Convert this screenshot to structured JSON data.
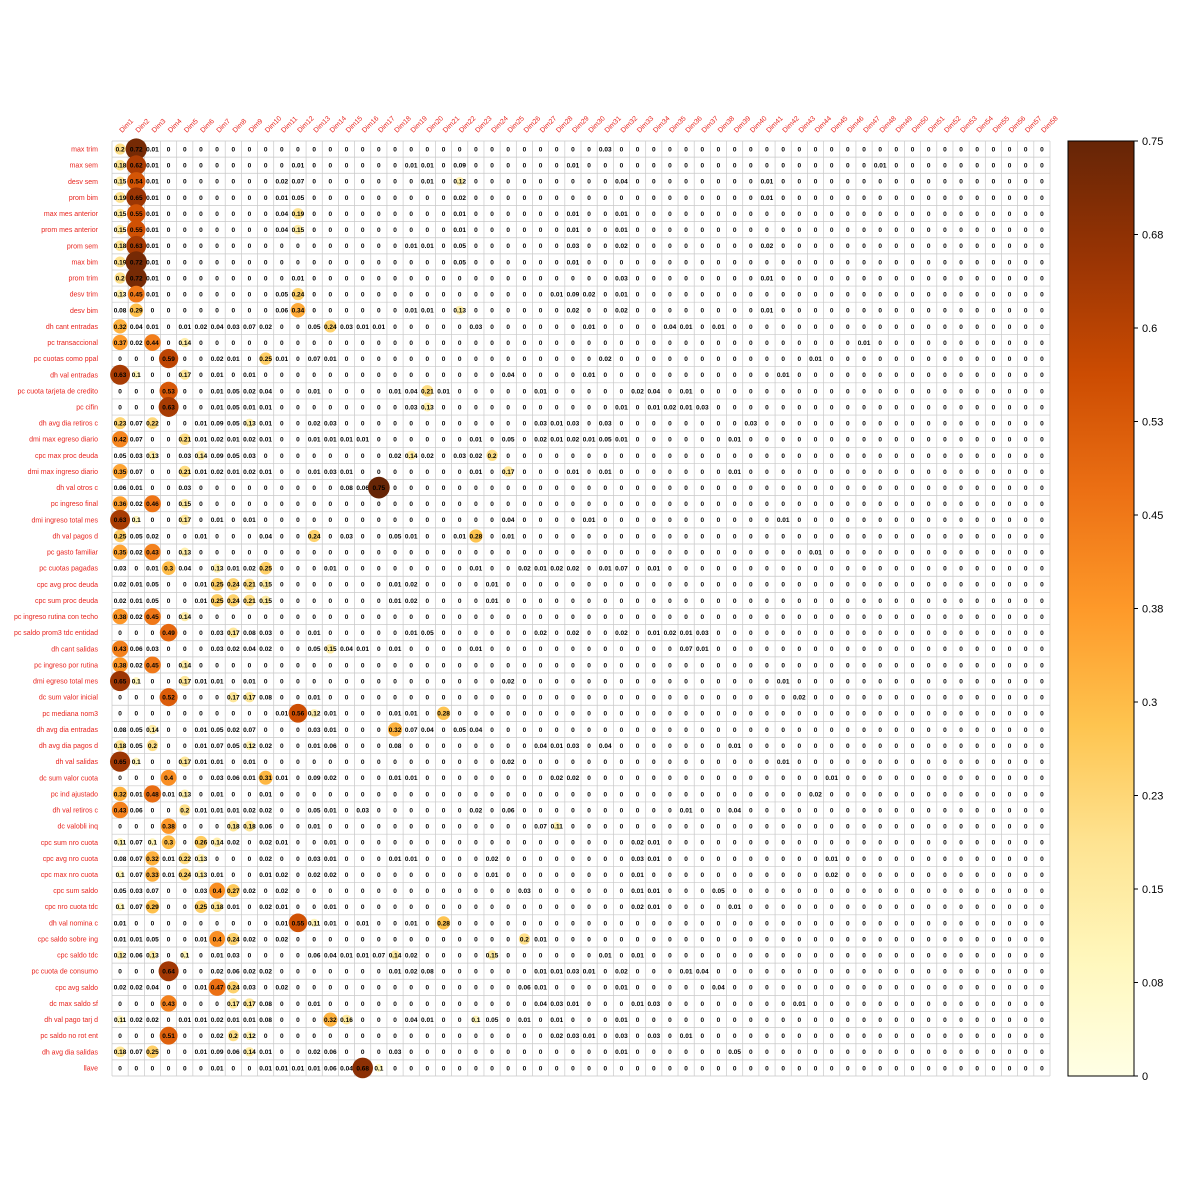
{
  "chart_data": {
    "type": "heatmap",
    "title": "",
    "columns": [
      "Dim1",
      "Dim2",
      "Dim3",
      "Dim4",
      "Dim5",
      "Dim6",
      "Dim7",
      "Dim8",
      "Dim9",
      "Dim10",
      "Dim11",
      "Dim12",
      "Dim13",
      "Dim14",
      "Dim15",
      "Dim16",
      "Dim17",
      "Dim18",
      "Dim19",
      "Dim20",
      "Dim21",
      "Dim22",
      "Dim23",
      "Dim24",
      "Dim25",
      "Dim26",
      "Dim27",
      "Dim28",
      "Dim29",
      "Dim30",
      "Dim31",
      "Dim32",
      "Dim33",
      "Dim34",
      "Dim35",
      "Dim36",
      "Dim37",
      "Dim38",
      "Dim39",
      "Dim40",
      "Dim41",
      "Dim42",
      "Dim43",
      "Dim44",
      "Dim45",
      "Dim46",
      "Dim47",
      "Dim48",
      "Dim49",
      "Dim50",
      "Dim51",
      "Dim52",
      "Dim53",
      "Dim54",
      "Dim55",
      "Dim56",
      "Dim57",
      "Dim58"
    ],
    "rows": [
      {
        "label": "max_trim",
        "values": {
          "0": 0.2,
          "1": 0.72,
          "2": 0.01,
          "30": 0.03
        }
      },
      {
        "label": "max_sem",
        "values": {
          "0": 0.18,
          "1": 0.62,
          "2": 0.01,
          "11": 0.01,
          "18": 0.01,
          "19": 0.01,
          "21": 0.09,
          "28": 0.01,
          "47": 0.01
        }
      },
      {
        "label": "desv_sem",
        "values": {
          "0": 0.15,
          "1": 0.54,
          "2": 0.01,
          "10": 0.02,
          "11": 0.07,
          "19": 0.01,
          "21": 0.12,
          "31": 0.04,
          "40": 0.01
        }
      },
      {
        "label": "prom_bim",
        "values": {
          "0": 0.19,
          "1": 0.65,
          "2": 0.01,
          "10": 0.01,
          "11": 0.05,
          "21": 0.02,
          "40": 0.01
        }
      },
      {
        "label": "max_mes_anterior",
        "values": {
          "0": 0.15,
          "1": 0.55,
          "2": 0.01,
          "10": 0.04,
          "11": 0.19,
          "21": 0.01,
          "28": 0.01,
          "31": 0.01
        }
      },
      {
        "label": "prom_mes_anterior",
        "values": {
          "0": 0.15,
          "1": 0.55,
          "2": 0.01,
          "10": 0.04,
          "11": 0.15,
          "21": 0.01,
          "28": 0.01,
          "31": 0.01
        }
      },
      {
        "label": "prom_sem",
        "values": {
          "0": 0.18,
          "1": 0.63,
          "2": 0.01,
          "18": 0.01,
          "19": 0.01,
          "21": 0.05,
          "28": 0.03,
          "31": 0.02,
          "40": 0.02
        }
      },
      {
        "label": "max_bim",
        "values": {
          "0": 0.19,
          "1": 0.72,
          "2": 0.01,
          "21": 0.05,
          "28": 0.01
        }
      },
      {
        "label": "prom_trim",
        "values": {
          "0": 0.2,
          "1": 0.72,
          "2": 0.01,
          "11": 0.01,
          "31": 0.03,
          "40": 0.01
        }
      },
      {
        "label": "desv_trim",
        "values": {
          "0": 0.13,
          "1": 0.45,
          "2": 0.01,
          "10": 0.05,
          "11": 0.24,
          "27": 0.01,
          "28": 0.09,
          "29": 0.02,
          "31": 0.01
        }
      },
      {
        "label": "desv_bim",
        "values": {
          "0": 0.08,
          "1": 0.29,
          "10": 0.06,
          "11": 0.34,
          "18": 0.01,
          "19": 0.01,
          "21": 0.13,
          "28": 0.02,
          "31": 0.02,
          "40": 0.01
        }
      },
      {
        "label": "dh_cant_entradas",
        "values": {
          "0": 0.32,
          "1": 0.04,
          "2": 0.01,
          "4": 0.01,
          "5": 0.02,
          "6": 0.04,
          "7": 0.03,
          "8": 0.07,
          "9": 0.02,
          "12": 0.05,
          "13": 0.24,
          "14": 0.03,
          "15": 0.01,
          "16": 0.01,
          "22": 0.03,
          "29": 0.01,
          "34": 0.04,
          "35": 0.01,
          "37": 0.01
        }
      },
      {
        "label": "pc_transaccional",
        "values": {
          "0": 0.37,
          "1": 0.02,
          "2": 0.44,
          "4": 0.14,
          "46": 0.01
        }
      },
      {
        "label": "pc_cuotas_como_ppal",
        "values": {
          "3": 0.59,
          "6": 0.02,
          "7": 0.01,
          "9": 0.25,
          "10": 0.01,
          "12": 0.07,
          "13": 0.01,
          "30": 0.02,
          "43": 0.01
        }
      },
      {
        "label": "dh_val_entradas",
        "values": {
          "0": 0.63,
          "1": 0.1,
          "4": 0.17,
          "6": 0.01,
          "8": 0.01,
          "24": 0.04,
          "29": 0.01,
          "41": 0.01
        }
      },
      {
        "label": "pc_cuota_tarjeta_de_credito",
        "values": {
          "3": 0.53,
          "6": 0.01,
          "7": 0.05,
          "8": 0.02,
          "9": 0.04,
          "12": 0.01,
          "17": 0.01,
          "18": 0.04,
          "19": 0.21,
          "20": 0.01,
          "26": 0.01,
          "32": 0.02,
          "33": 0.04,
          "35": 0.01
        }
      },
      {
        "label": "pc_cifin",
        "values": {
          "3": 0.63,
          "6": 0.01,
          "7": 0.05,
          "8": 0.01,
          "9": 0.01,
          "18": 0.03,
          "19": 0.13,
          "31": 0.01,
          "33": 0.01,
          "34": 0.02,
          "35": 0.01,
          "36": 0.03
        }
      },
      {
        "label": "dh_avg_dia_retiros_c",
        "values": {
          "0": 0.23,
          "1": 0.07,
          "2": 0.22,
          "5": 0.01,
          "6": 0.09,
          "7": 0.05,
          "8": 0.13,
          "9": 0.01,
          "12": 0.02,
          "13": 0.03,
          "26": 0.03,
          "27": 0.01,
          "28": 0.03,
          "30": 0.03,
          "39": 0.03
        }
      },
      {
        "label": "dmi_max_egreso_diario",
        "values": {
          "0": 0.42,
          "1": 0.07,
          "4": 0.21,
          "5": 0.01,
          "6": 0.02,
          "7": 0.01,
          "8": 0.02,
          "9": 0.01,
          "12": 0.01,
          "13": 0.01,
          "14": 0.01,
          "15": 0.01,
          "22": 0.01,
          "24": 0.05,
          "26": 0.02,
          "27": 0.01,
          "28": 0.02,
          "29": 0.01,
          "30": 0.05,
          "31": 0.01,
          "38": 0.01
        }
      },
      {
        "label": "cpc_max_proc_deuda",
        "values": {
          "0": 0.05,
          "1": 0.03,
          "2": 0.13,
          "4": 0.03,
          "5": 0.14,
          "6": 0.09,
          "7": 0.05,
          "8": 0.03,
          "17": 0.02,
          "18": 0.14,
          "19": 0.02,
          "21": 0.03,
          "22": 0.02,
          "23": 0.2
        }
      },
      {
        "label": "dmi_max_ingreso_diario",
        "values": {
          "0": 0.35,
          "1": 0.07,
          "4": 0.21,
          "5": 0.01,
          "6": 0.02,
          "7": 0.01,
          "8": 0.02,
          "9": 0.01,
          "12": 0.01,
          "13": 0.03,
          "14": 0.01,
          "22": 0.01,
          "24": 0.17,
          "28": 0.01,
          "30": 0.01,
          "38": 0.01
        }
      },
      {
        "label": "dh_val_otros_c",
        "values": {
          "0": 0.06,
          "1": 0.01,
          "4": 0.03,
          "14": 0.08,
          "15": 0.06,
          "16": 0.75
        }
      },
      {
        "label": "pc_ingreso_final",
        "values": {
          "0": 0.36,
          "1": 0.02,
          "2": 0.46,
          "4": 0.15
        }
      },
      {
        "label": "dmi_ingreso_total_mes",
        "values": {
          "0": 0.63,
          "1": 0.1,
          "4": 0.17,
          "6": 0.01,
          "8": 0.01,
          "24": 0.04,
          "29": 0.01,
          "41": 0.01
        }
      },
      {
        "label": "dh_val_pagos_d",
        "values": {
          "0": 0.25,
          "1": 0.05,
          "2": 0.02,
          "5": 0.01,
          "9": 0.04,
          "12": 0.24,
          "14": 0.03,
          "17": 0.05,
          "18": 0.01,
          "21": 0.01,
          "22": 0.28,
          "24": 0.01
        }
      },
      {
        "label": "pc_gasto_familiar",
        "values": {
          "0": 0.35,
          "1": 0.02,
          "2": 0.43,
          "4": 0.13,
          "43": 0.01
        }
      },
      {
        "label": "pc_cuotas_pagadas",
        "values": {
          "0": 0.03,
          "2": 0.01,
          "3": 0.3,
          "4": 0.04,
          "6": 0.13,
          "7": 0.01,
          "8": 0.02,
          "9": 0.25,
          "13": 0.01,
          "22": 0.01,
          "25": 0.02,
          "26": 0.01,
          "27": 0.02,
          "28": 0.02,
          "30": 0.01,
          "31": 0.07,
          "33": 0.01
        }
      },
      {
        "label": "cpc_avg_proc_deuda",
        "values": {
          "0": 0.02,
          "1": 0.01,
          "2": 0.05,
          "5": 0.01,
          "6": 0.25,
          "7": 0.24,
          "8": 0.21,
          "9": 0.15,
          "17": 0.01,
          "18": 0.02,
          "23": 0.01
        }
      },
      {
        "label": "cpc_sum_proc_deuda",
        "values": {
          "0": 0.02,
          "1": 0.01,
          "2": 0.05,
          "5": 0.01,
          "6": 0.25,
          "7": 0.24,
          "8": 0.21,
          "9": 0.15,
          "17": 0.01,
          "18": 0.02,
          "23": 0.01
        }
      },
      {
        "label": "pc_ingreso_rutina_con_techo",
        "values": {
          "0": 0.38,
          "1": 0.02,
          "2": 0.45,
          "4": 0.14
        }
      },
      {
        "label": "pc_saldo_prom3_tdc_entidad",
        "values": {
          "3": 0.49,
          "6": 0.03,
          "7": 0.17,
          "8": 0.08,
          "9": 0.03,
          "12": 0.01,
          "18": 0.01,
          "19": 0.05,
          "26": 0.02,
          "28": 0.02,
          "31": 0.02,
          "33": 0.01,
          "34": 0.02,
          "35": 0.01,
          "36": 0.03
        }
      },
      {
        "label": "dh_cant_salidas",
        "values": {
          "0": 0.43,
          "1": 0.06,
          "2": 0.03,
          "6": 0.03,
          "7": 0.02,
          "8": 0.04,
          "9": 0.02,
          "12": 0.05,
          "13": 0.15,
          "14": 0.04,
          "15": 0.01,
          "17": 0.01,
          "22": 0.01,
          "35": 0.07,
          "36": 0.01
        }
      },
      {
        "label": "pc_ingreso_por_rutina",
        "values": {
          "0": 0.38,
          "1": 0.02,
          "2": 0.45,
          "4": 0.14
        }
      },
      {
        "label": "dmi_egreso_total_mes",
        "values": {
          "0": 0.65,
          "1": 0.1,
          "4": 0.17,
          "5": 0.01,
          "6": 0.01,
          "8": 0.01,
          "24": 0.02,
          "41": 0.01
        }
      },
      {
        "label": "dc_sum_valor_inicial",
        "values": {
          "3": 0.52,
          "7": 0.17,
          "8": 0.17,
          "9": 0.08,
          "12": 0.01,
          "42": 0.02
        }
      },
      {
        "label": "pc_mediana_nom3",
        "values": {
          "10": 0.01,
          "11": 0.56,
          "12": 0.12,
          "13": 0.01,
          "17": 0.01,
          "18": 0.01,
          "20": 0.28
        }
      },
      {
        "label": "dh_avg_dia_entradas",
        "values": {
          "0": 0.08,
          "1": 0.05,
          "2": 0.14,
          "5": 0.01,
          "6": 0.05,
          "7": 0.02,
          "8": 0.07,
          "12": 0.03,
          "13": 0.01,
          "17": 0.32,
          "18": 0.07,
          "19": 0.04,
          "21": 0.05,
          "22": 0.04
        }
      },
      {
        "label": "dh_avg_dia_pagos_d",
        "values": {
          "0": 0.18,
          "1": 0.05,
          "2": 0.2,
          "5": 0.01,
          "6": 0.07,
          "7": 0.05,
          "8": 0.12,
          "9": 0.02,
          "12": 0.01,
          "13": 0.06,
          "17": 0.08,
          "26": 0.04,
          "27": 0.01,
          "28": 0.03,
          "30": 0.04,
          "38": 0.01
        }
      },
      {
        "label": "dh_val_salidas",
        "values": {
          "0": 0.65,
          "1": 0.1,
          "4": 0.17,
          "5": 0.01,
          "6": 0.01,
          "8": 0.01,
          "24": 0.02,
          "41": 0.01
        }
      },
      {
        "label": "dc_sum_valor_cuota",
        "values": {
          "3": 0.4,
          "6": 0.03,
          "7": 0.06,
          "8": 0.01,
          "9": 0.31,
          "10": 0.01,
          "12": 0.09,
          "13": 0.02,
          "17": 0.01,
          "18": 0.01,
          "27": 0.02,
          "28": 0.02,
          "44": 0.01
        }
      },
      {
        "label": "pc_ind_ajustado",
        "values": {
          "0": 0.32,
          "1": 0.01,
          "2": 0.48,
          "3": 0.01,
          "4": 0.13,
          "6": 0.01,
          "9": 0.01,
          "43": 0.02
        }
      },
      {
        "label": "dh_val_retiros_c",
        "values": {
          "0": 0.43,
          "1": 0.06,
          "4": 0.2,
          "5": 0.01,
          "6": 0.01,
          "7": 0.01,
          "8": 0.02,
          "9": 0.02,
          "12": 0.05,
          "13": 0.01,
          "15": 0.03,
          "22": 0.02,
          "24": 0.06,
          "35": 0.01,
          "38": 0.04
        }
      },
      {
        "label": "dc_valobli_inq",
        "values": {
          "3": 0.38,
          "7": 0.18,
          "8": 0.18,
          "9": 0.06,
          "12": 0.01,
          "26": 0.07,
          "27": 0.11
        }
      },
      {
        "label": "cpc_sum_nro_cuota",
        "values": {
          "0": 0.11,
          "1": 0.07,
          "2": 0.1,
          "3": 0.3,
          "5": 0.26,
          "6": 0.14,
          "7": 0.02,
          "9": 0.02,
          "10": 0.01,
          "13": 0.01,
          "32": 0.02,
          "33": 0.01
        }
      },
      {
        "label": "cpc_avg_nro_cuota",
        "values": {
          "0": 0.08,
          "1": 0.07,
          "2": 0.32,
          "3": 0.01,
          "4": 0.22,
          "5": 0.13,
          "9": 0.02,
          "12": 0.03,
          "13": 0.01,
          "17": 0.01,
          "18": 0.01,
          "23": 0.02,
          "32": 0.03,
          "33": 0.01,
          "44": 0.01
        }
      },
      {
        "label": "cpc_max_nro_cuota",
        "values": {
          "0": 0.1,
          "1": 0.07,
          "2": 0.33,
          "3": 0.01,
          "4": 0.24,
          "5": 0.13,
          "6": 0.01,
          "9": 0.01,
          "10": 0.02,
          "12": 0.02,
          "13": 0.02,
          "23": 0.01,
          "32": 0.01,
          "44": 0.02
        }
      },
      {
        "label": "cpc_sum_saldo",
        "values": {
          "0": 0.05,
          "1": 0.03,
          "2": 0.07,
          "5": 0.03,
          "6": 0.4,
          "7": 0.27,
          "8": 0.02,
          "10": 0.02,
          "25": 0.03,
          "32": 0.01,
          "33": 0.01,
          "37": 0.05
        }
      },
      {
        "label": "cpc_nro_cuota_tdc",
        "values": {
          "0": 0.1,
          "1": 0.07,
          "2": 0.29,
          "5": 0.25,
          "6": 0.18,
          "7": 0.01,
          "9": 0.02,
          "10": 0.01,
          "13": 0.01,
          "32": 0.02,
          "33": 0.01,
          "38": 0.01
        }
      },
      {
        "label": "dh_val_nomina_c",
        "values": {
          "0": 0.01,
          "10": 0.01,
          "11": 0.55,
          "12": 0.11,
          "13": 0.01,
          "15": 0.01,
          "18": 0.01,
          "20": 0.28
        }
      },
      {
        "label": "cpc_saldo_sobre_ing",
        "values": {
          "0": 0.01,
          "1": 0.01,
          "2": 0.05,
          "5": 0.01,
          "6": 0.4,
          "7": 0.24,
          "8": 0.02,
          "10": 0.02,
          "25": 0.2,
          "26": 0.01
        }
      },
      {
        "label": "cpc_saldo_tdc",
        "values": {
          "0": 0.12,
          "1": 0.06,
          "2": 0.13,
          "4": 0.1,
          "6": 0.01,
          "7": 0.03,
          "12": 0.06,
          "13": 0.04,
          "14": 0.01,
          "15": 0.01,
          "16": 0.07,
          "17": 0.14,
          "18": 0.02,
          "23": 0.15,
          "30": 0.01,
          "32": 0.01
        }
      },
      {
        "label": "pc_cuota_de_consumo",
        "values": {
          "3": 0.64,
          "6": 0.02,
          "7": 0.06,
          "8": 0.02,
          "9": 0.02,
          "17": 0.01,
          "18": 0.02,
          "19": 0.08,
          "26": 0.01,
          "27": 0.01,
          "28": 0.03,
          "29": 0.01,
          "31": 0.02,
          "35": 0.01,
          "36": 0.04
        }
      },
      {
        "label": "cpc_avg_saldo",
        "values": {
          "0": 0.02,
          "1": 0.02,
          "2": 0.04,
          "5": 0.01,
          "6": 0.47,
          "7": 0.24,
          "8": 0.03,
          "10": 0.02,
          "25": 0.06,
          "26": 0.01,
          "31": 0.01,
          "37": 0.04
        }
      },
      {
        "label": "dc_max_saldo_sf",
        "values": {
          "3": 0.43,
          "7": 0.17,
          "8": 0.17,
          "9": 0.08,
          "12": 0.01,
          "26": 0.04,
          "27": 0.03,
          "28": 0.01,
          "32": 0.01,
          "33": 0.03,
          "42": 0.01
        }
      },
      {
        "label": "dh_val_pago_tarj_d",
        "values": {
          "0": 0.11,
          "1": 0.02,
          "2": 0.02,
          "4": 0.01,
          "5": 0.01,
          "6": 0.02,
          "7": 0.01,
          "8": 0.01,
          "9": 0.08,
          "13": 0.32,
          "14": 0.16,
          "18": 0.04,
          "19": 0.01,
          "22": 0.1,
          "23": 0.05,
          "25": 0.01,
          "27": 0.01,
          "31": 0.01
        }
      },
      {
        "label": "pc_saldo_no_rot_ent",
        "values": {
          "3": 0.51,
          "6": 0.02,
          "7": 0.2,
          "8": 0.12,
          "27": 0.02,
          "28": 0.03,
          "29": 0.01,
          "31": 0.03,
          "33": 0.03,
          "35": 0.01
        }
      },
      {
        "label": "dh_avg_dia_salidas",
        "values": {
          "0": 0.18,
          "1": 0.07,
          "2": 0.25,
          "5": 0.01,
          "6": 0.09,
          "7": 0.06,
          "8": 0.14,
          "9": 0.01,
          "12": 0.02,
          "13": 0.06,
          "17": 0.03,
          "31": 0.01,
          "38": 0.05
        }
      },
      {
        "label": "llave",
        "values": {
          "6": 0.01,
          "9": 0.01,
          "10": 0.01,
          "11": 0.01,
          "12": 0.01,
          "13": 0.06,
          "14": 0.04,
          "15": 0.68,
          "16": 0.1
        }
      }
    ],
    "legend": {
      "min": 0,
      "max": 0.75,
      "tick_labels": [
        "0.75",
        "0.68",
        "0.6",
        "0.53",
        "0.45",
        "0.38",
        "0.3",
        "0.23",
        "0.15",
        "0.08",
        "0"
      ]
    },
    "colors": {
      "label_text": "#e8251f",
      "grid": "#c8c8c8",
      "value_text": "#000000"
    },
    "grid": true
  }
}
